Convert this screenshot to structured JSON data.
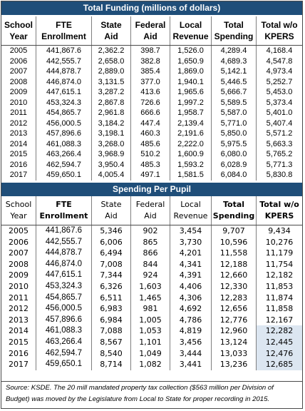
{
  "funding": {
    "title": "Total Funding (millions of dollars)",
    "headers": [
      "School\nYear",
      "FTE\nEnrollment",
      "State\nAid",
      "Federal\nAid",
      "Local\nRevenue",
      "Total\nSpending",
      "Total w/o\nKPERS"
    ],
    "rows": [
      [
        "2005",
        "441,867.6",
        "2,362.2",
        "398.7",
        "1,526.0",
        "4,289.4",
        "4,168.4"
      ],
      [
        "2006",
        "442,555.7",
        "2,658.0",
        "382.8",
        "1,650.9",
        "4,689.3",
        "4,547.8"
      ],
      [
        "2007",
        "444,878.7",
        "2,889.0",
        "385.4",
        "1,869.0",
        "5,142.1",
        "4,973.4"
      ],
      [
        "2008",
        "446,874.0",
        "3,131.5",
        "377.0",
        "1,940.1",
        "5,446.5",
        "5,252.7"
      ],
      [
        "2009",
        "447,615.1",
        "3,287.2",
        "413.6",
        "1,965.6",
        "5,666.7",
        "5,453.0"
      ],
      [
        "2010",
        "453,324.3",
        "2,867.8",
        "726.6",
        "1,997.2",
        "5,589.5",
        "5,373.4"
      ],
      [
        "2011",
        "454,865.7",
        "2,961.8",
        "666.6",
        "1,958.7",
        "5,587.0",
        "5,401.0"
      ],
      [
        "2012",
        "456,000.5",
        "3,184.2",
        "447.4",
        "2,139.4",
        "5,771.0",
        "5,407.4"
      ],
      [
        "2013",
        "457,896.6",
        "3,198.1",
        "460.3",
        "2,191.6",
        "5,850.0",
        "5,571.2"
      ],
      [
        "2014",
        "461,088.3",
        "3,268.0",
        "485.6",
        "2,222.0",
        "5,975.5",
        "5,663.3"
      ],
      [
        "2015",
        "463,266.4",
        "3,968.9",
        "510.2",
        "1,600.9",
        "6,080.0",
        "5,765.2"
      ],
      [
        "2016",
        "462,594.7",
        "3,950.4",
        "485.3",
        "1,593.2",
        "6,028.9",
        "5,771.3"
      ],
      [
        "2017",
        "459,650.1",
        "4,005.4",
        "497.1",
        "1,581.5",
        "6,084.0",
        "5,830.8"
      ]
    ]
  },
  "per_pupil": {
    "title": "Spending Per Pupil",
    "headers": [
      "School\nYear",
      "FTE\nEnrollment",
      "State\nAid",
      "Federal\nAid",
      "Local\nRevenue",
      "Total\nSpending",
      "Total w/o\nKPERS"
    ],
    "rows": [
      [
        "2005",
        "441,867.6",
        "5,346",
        "902",
        "3,454",
        "9,707",
        "9,434"
      ],
      [
        "2006",
        "442,555.7",
        "6,006",
        "865",
        "3,730",
        "10,596",
        "10,276"
      ],
      [
        "2007",
        "444,878.7",
        "6,494",
        "866",
        "4,201",
        "11,558",
        "11,179"
      ],
      [
        "2008",
        "446,874.0",
        "7,008",
        "844",
        "4,341",
        "12,188",
        "11,754"
      ],
      [
        "2009",
        "447,615.1",
        "7,344",
        "924",
        "4,391",
        "12,660",
        "12,182"
      ],
      [
        "2010",
        "453,324.3",
        "6,326",
        "1,603",
        "4,406",
        "12,330",
        "11,853"
      ],
      [
        "2011",
        "454,865.7",
        "6,511",
        "1,465",
        "4,306",
        "12,283",
        "11,874"
      ],
      [
        "2012",
        "456,000.5",
        "6,983",
        "981",
        "4,692",
        "12,656",
        "11,858"
      ],
      [
        "2013",
        "457,896.6",
        "6,984",
        "1,005",
        "4,786",
        "12,776",
        "12,167"
      ],
      [
        "2014",
        "461,088.3",
        "7,088",
        "1,053",
        "4,819",
        "12,960",
        "12,282"
      ],
      [
        "2015",
        "463,266.4",
        "8,567",
        "1,101",
        "3,456",
        "13,124",
        "12,445"
      ],
      [
        "2016",
        "462,594.7",
        "8,540",
        "1,049",
        "3,444",
        "13,033",
        "12,476"
      ],
      [
        "2017",
        "459,650.1",
        "8,714",
        "1,082",
        "3,441",
        "13,236",
        "12,685"
      ]
    ],
    "highlight_rows_last_col": [
      9,
      10,
      11,
      12
    ],
    "highlight_color": "#dce6f1"
  },
  "banner_color": "#1f4e79",
  "source_note": "Source: KSDE. The 20 mill mandated property tax collection ($563 million per Division of Budget) was moved by the Legislature from Local to State for proper recording in 2015."
}
